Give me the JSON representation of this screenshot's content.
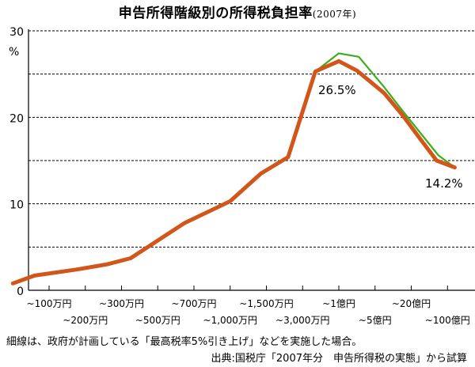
{
  "title": "申告所得階級別の所得税負担率",
  "year_note": "(2007年)",
  "note": "細線は、政府が計画している「最高税率5%引き上げ」などを実施した場合。",
  "source": "出典:国税庁「2007年分　申告所得税の実態」から試算",
  "chart_data": {
    "type": "line",
    "ylabel": "%",
    "ylim": [
      0,
      30
    ],
    "yticks": [
      0,
      10,
      20,
      30
    ],
    "grid": true,
    "x_labels": [
      "~100万円",
      "~200万円",
      "~300万円",
      "~500万円",
      "~700万円",
      "~1,000万円",
      "~1,500万円",
      "~3,000万円",
      "~1億円",
      "~5億円",
      "~20億円",
      "~100億円"
    ],
    "x_positions": [
      1,
      2,
      3,
      4,
      5,
      6,
      7,
      8,
      9,
      10,
      11,
      12
    ],
    "series": [
      {
        "color": "#d2561a",
        "x": [
          0,
          0.6,
          1.75,
          2.6,
          3.25,
          4.75,
          6,
          6.85,
          7.6,
          8.35,
          9,
          9.5,
          10.25,
          10.75,
          11.25,
          11.7,
          12.2
        ],
        "y": [
          0.8,
          1.7,
          2.4,
          3.0,
          3.7,
          7.8,
          10.3,
          13.5,
          15.4,
          25.3,
          26.5,
          25.4,
          22.8,
          20.3,
          17.5,
          15.0,
          14.2
        ]
      },
      {
        "color": "#3cae1c",
        "x": [
          7.6,
          8.35,
          9,
          9.55,
          10.25,
          10.75,
          11.25,
          11.75,
          12.2
        ],
        "y": [
          15.4,
          25.3,
          27.4,
          27.0,
          23.5,
          20.8,
          18.2,
          15.6,
          14.2
        ]
      }
    ],
    "annotations": [
      "26.5%",
      "14.2%"
    ]
  }
}
